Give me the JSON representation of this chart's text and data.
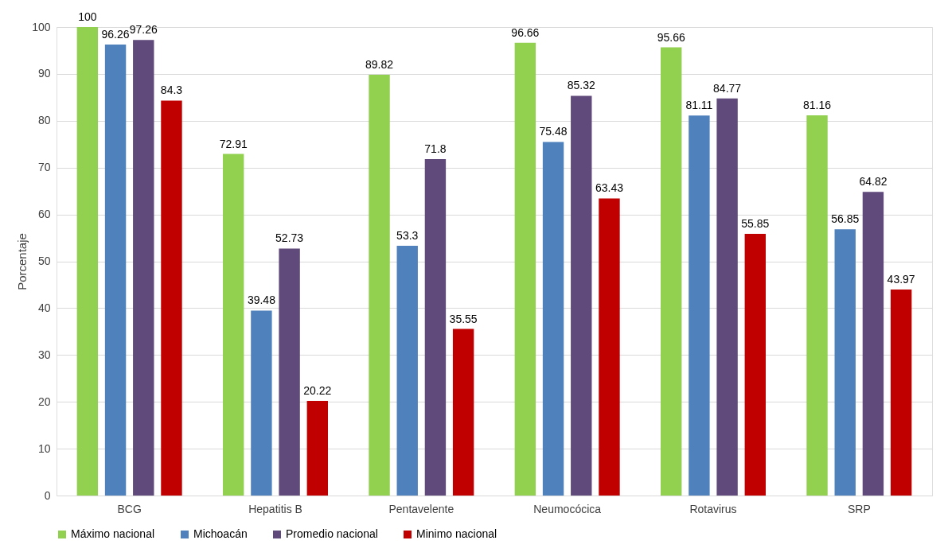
{
  "chart_data": {
    "type": "bar",
    "ylabel": "Porcentaje",
    "categories": [
      "BCG",
      "Hepatitis B",
      "Pentavelente",
      "Neumocócica",
      "Rotavirus",
      "SRP"
    ],
    "series": [
      {
        "name": "Máximo nacional",
        "color": "#92d050",
        "values": [
          100,
          72.91,
          89.82,
          96.66,
          95.66,
          81.16
        ]
      },
      {
        "name": "Michoacán",
        "color": "#4f81bd",
        "values": [
          96.26,
          39.48,
          53.3,
          75.48,
          81.11,
          56.85
        ]
      },
      {
        "name": "Promedio nacional",
        "color": "#604a7b",
        "values": [
          97.26,
          52.73,
          71.8,
          85.32,
          84.77,
          64.82
        ]
      },
      {
        "name": "Minimo nacional",
        "color": "#c00000",
        "values": [
          84.3,
          20.22,
          35.55,
          63.43,
          55.85,
          43.97
        ]
      }
    ],
    "ylim": [
      0,
      100
    ],
    "yticks": [
      0,
      10,
      20,
      30,
      40,
      50,
      60,
      70,
      80,
      90,
      100
    ],
    "grid": "y",
    "legend": "bottom",
    "data_labels": true
  }
}
